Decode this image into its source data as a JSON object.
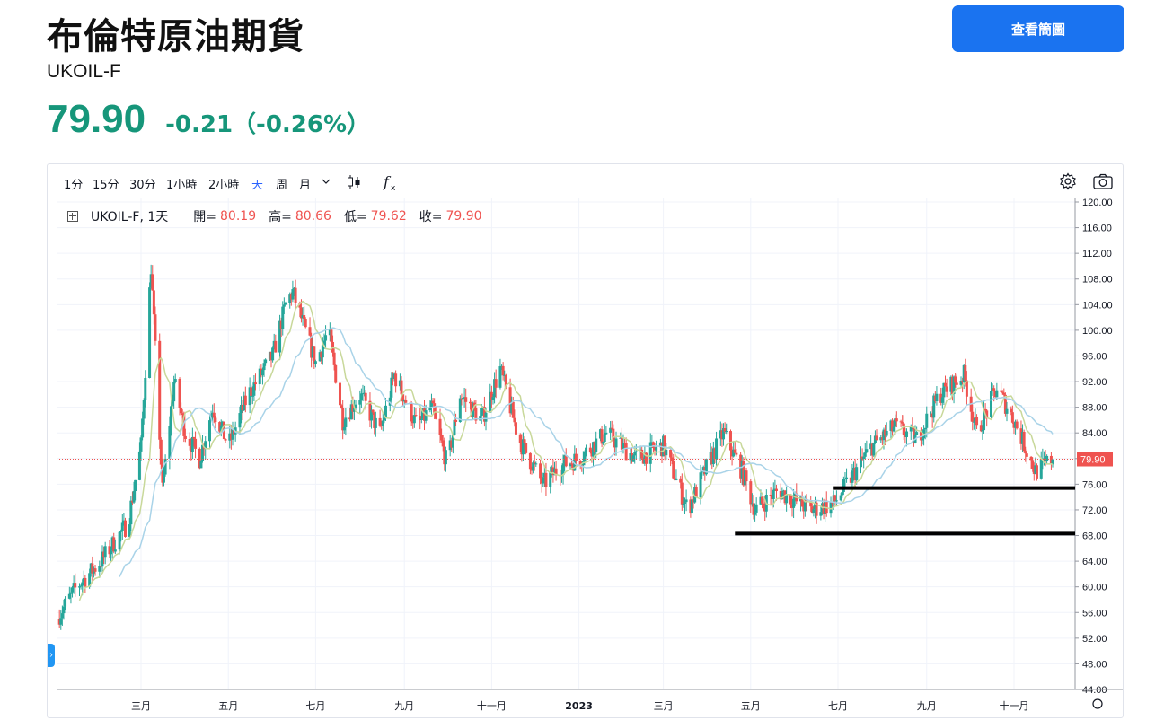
{
  "header": {
    "title": "布倫特原油期貨",
    "symbol": "UKOIL-F",
    "price": "79.90",
    "change": "-0.21（-0.26%）",
    "view_button": "查看簡圖"
  },
  "toolbar": {
    "intervals": [
      "1分",
      "15分",
      "30分",
      "1小時",
      "2小時",
      "天",
      "周",
      "月"
    ],
    "active_interval": "天"
  },
  "legend": {
    "symbol": "UKOIL-F, 1天",
    "open_label": "開=",
    "open": "80.19",
    "high_label": "高=",
    "high": "80.66",
    "low_label": "低=",
    "low": "79.62",
    "close_label": "收=",
    "close": "79.90"
  },
  "colors": {
    "up": "#26a69a",
    "down": "#ef5350",
    "ma_fast": "#c8d89a",
    "ma_slow": "#a9d3e8",
    "accent": "#1a73f0"
  },
  "chart_data": {
    "type": "candlestick",
    "x_ticks": [
      "三月",
      "五月",
      "七月",
      "九月",
      "十一月",
      "2023",
      "三月",
      "五月",
      "七月",
      "九月",
      "十一月"
    ],
    "x_tick_dates": [
      "2022-03-01",
      "2022-05-01",
      "2022-07-01",
      "2022-09-01",
      "2022-11-01",
      "2023-01-01",
      "2023-03-01",
      "2023-05-01",
      "2023-07-01",
      "2023-09-01",
      "2023-11-01"
    ],
    "y_ticks": [
      "120.00",
      "116.00",
      "112.00",
      "108.00",
      "104.00",
      "100.00",
      "96.00",
      "92.00",
      "88.00",
      "84.00",
      "80.00",
      "76.00",
      "72.00",
      "68.00",
      "64.00",
      "60.00",
      "56.00",
      "52.00",
      "48.00",
      "44.00"
    ],
    "ylim": [
      44,
      120
    ],
    "last_price_label": "79.90",
    "last_price": 79.9,
    "x_range": [
      "2022-01-01",
      "2023-11-28"
    ],
    "price_path": [
      [
        "2022-01-01",
        55
      ],
      [
        "2022-01-15",
        60
      ],
      [
        "2022-02-01",
        64
      ],
      [
        "2022-02-20",
        70
      ],
      [
        "2022-03-01",
        82
      ],
      [
        "2022-03-08",
        110
      ],
      [
        "2022-03-16",
        75
      ],
      [
        "2022-03-24",
        92
      ],
      [
        "2022-04-01",
        84
      ],
      [
        "2022-04-11",
        80
      ],
      [
        "2022-04-20",
        88
      ],
      [
        "2022-05-01",
        82
      ],
      [
        "2022-05-15",
        90
      ],
      [
        "2022-06-01",
        96
      ],
      [
        "2022-06-10",
        104
      ],
      [
        "2022-06-15",
        106
      ],
      [
        "2022-07-01",
        95
      ],
      [
        "2022-07-10",
        100
      ],
      [
        "2022-07-20",
        86
      ],
      [
        "2022-08-01",
        90
      ],
      [
        "2022-08-15",
        84
      ],
      [
        "2022-08-25",
        93
      ],
      [
        "2022-09-10",
        85
      ],
      [
        "2022-09-20",
        88
      ],
      [
        "2022-10-01",
        79
      ],
      [
        "2022-10-10",
        90
      ],
      [
        "2022-10-25",
        86
      ],
      [
        "2022-11-07",
        94
      ],
      [
        "2022-11-20",
        83
      ],
      [
        "2022-12-07",
        76
      ],
      [
        "2022-12-20",
        79
      ],
      [
        "2023-01-01",
        80
      ],
      [
        "2023-01-20",
        84
      ],
      [
        "2023-02-10",
        80
      ],
      [
        "2023-03-01",
        82
      ],
      [
        "2023-03-18",
        72
      ],
      [
        "2023-04-01",
        79
      ],
      [
        "2023-04-12",
        84
      ],
      [
        "2023-04-25",
        78
      ],
      [
        "2023-05-04",
        72
      ],
      [
        "2023-05-20",
        75
      ],
      [
        "2023-06-12",
        72
      ],
      [
        "2023-06-28",
        73
      ],
      [
        "2023-07-10",
        77
      ],
      [
        "2023-07-25",
        82
      ],
      [
        "2023-08-10",
        85
      ],
      [
        "2023-08-25",
        83
      ],
      [
        "2023-09-10",
        90
      ],
      [
        "2023-09-27",
        93
      ],
      [
        "2023-10-06",
        84
      ],
      [
        "2023-10-20",
        91
      ],
      [
        "2023-11-01",
        86
      ],
      [
        "2023-11-16",
        78
      ],
      [
        "2023-11-28",
        79.9
      ]
    ],
    "series": [
      {
        "type": "candles"
      },
      {
        "type": "ma",
        "window": 10
      },
      {
        "type": "ma",
        "window": 30
      }
    ],
    "annotations": [
      {
        "type": "hline",
        "y": 75.4,
        "from": "2023-06-28",
        "to": "2023-11-28"
      },
      {
        "type": "hline",
        "y": 68.3,
        "from": "2023-04-20",
        "to": "2023-11-28"
      }
    ]
  }
}
